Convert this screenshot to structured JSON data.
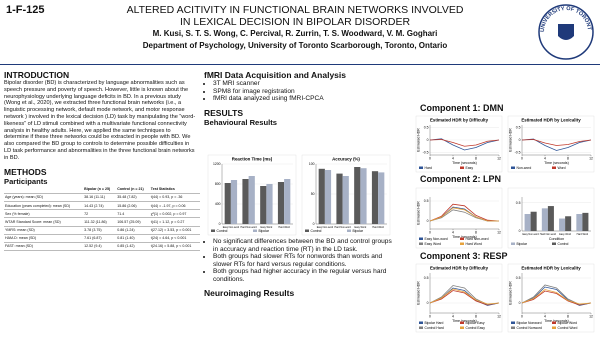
{
  "poster": {
    "id": "1-F-125",
    "title_line1": "ALTERED ACITIVITY IN FUNCTIONAL BRAIN NETWORKS INVOLVED",
    "title_line2": "IN LEXICAL DECISION IN BIPOLAR DISORDER",
    "authors": "M. Kusi, S. T. S. Wong, C. Percival, R. Zurrin, T. S. Woodward, V. M. Goghari",
    "department": "Department of Psychology, University of Toronto Scarborough, Toronto, Ontario",
    "logo_text": "UNIVERSITY OF TORONTO",
    "intro_heading": "INTRODUCTION",
    "intro_text": "Bipolar disorder (BD) is characterized by language abnormalities such as speech pressure and poverty of speech. However, little is known about the neurophysiology underlying language deficits in BD. In a previous study (Wong et al., 2020), we extracted three functional brain networks (i.e., a linguistic processing network, default mode network, and motor response network ) involved in the lexical decision (LD) task by manipulating the “word-likeness” of LD stimuli combined with a multivariate functional connectivity analysis in healthy adults. Here, we applied the same techniques to determine if these three networks could be extracted in people with BD. We also compared the BD group to controls to determine possible difficulties in LD task performance and abnormalities in the three functional brain networks in BD.",
    "methods_heading": "METHODS",
    "participants_heading": "Participants",
    "table": {
      "header": [
        "",
        "Bipolar (n = 25)",
        "Control (n = 21)",
        "Test Statistics"
      ],
      "rows": [
        [
          "Age (years): mean (SD)",
          "38.16 (11.11)",
          "35.48 (7.82)",
          "t(44) = 0.93, p = .36"
        ],
        [
          "Education (years completed): mean (SD)",
          "14.43 (2.74)",
          "15.86 (2.06)",
          "t(44) = -1.97, p = 0.06"
        ],
        [
          "Sex (% female)",
          "72",
          "71.4",
          "χ²(1) = 0.002, p = 0.97"
        ],
        [
          "WTAR Standard Score: mean (SD)",
          "111.32 (11.86)",
          "106.57 (25.09)",
          "t(41) = 1.12, p = 0.27"
        ],
        [
          "YMRS: mean (SD)",
          "3.78 (3.75)",
          "0.86 (1.24)",
          "t(27.12) = 3.53, p = 0.001"
        ],
        [
          "HAM-D: mean (SD)",
          "7.61 (6.87)",
          "0.81 (1.40)",
          "t(24) = 4.64, p < 0.001"
        ],
        [
          "FAST: mean (SD)",
          "12.52 (9.4)",
          "0.85 (1.42)",
          "t(24.16) = 5.88, p < 0.001"
        ]
      ]
    },
    "fmri_heading": "fMRI Data Acquisition and Analysis",
    "fmri_bullets": [
      "3T MRI scanner",
      "SPM8 for image registration",
      "fMRI data analyzed using fMRI-CPCA"
    ],
    "results_heading": "RESULTS",
    "behavioural_heading": "Behavioural Results",
    "results_bullets": [
      "No significant differences between the BD and control groups in accuracy and reaction time (RT) in the LD task.",
      "Both groups had slower RTs for nonwords than words and slower RTs for hard versus regular conditions.",
      "Both groups had higher accuracy in the regular versus hard conditions."
    ],
    "neuro_heading": "Neuroimaging Results",
    "component1": "Component 1: DMN",
    "component2": "Component 2: LPN",
    "component3": "Component 3: RESP"
  },
  "chart_data": [
    {
      "type": "bar",
      "title": "Reaction Time (ms)",
      "categories": [
        "Easy Non-word",
        "Hard Non-word",
        "Easy Word",
        "Hard Word"
      ],
      "series": [
        {
          "name": "Control",
          "color": "#5a5a5a",
          "values": [
            820,
            900,
            760,
            840
          ]
        },
        {
          "name": "Bipolar",
          "color": "#a7b1c6",
          "values": [
            880,
            960,
            800,
            900
          ]
        }
      ],
      "ylim": [
        0,
        1200
      ],
      "yticks": [
        0,
        400,
        800,
        1200
      ]
    },
    {
      "type": "bar",
      "title": "Accuracy (%)",
      "categories": [
        "Easy Non-word",
        "Hard Non-word",
        "Easy Word",
        "Hard Word"
      ],
      "series": [
        {
          "name": "Control",
          "color": "#5a5a5a",
          "values": [
            92,
            84,
            95,
            88
          ]
        },
        {
          "name": "Bipolar",
          "color": "#a7b1c6",
          "values": [
            90,
            80,
            93,
            86
          ]
        }
      ],
      "ylim": [
        0,
        100
      ],
      "yticks": [
        0,
        50,
        100
      ]
    },
    {
      "type": "line",
      "title": "Estimated HDR by Difficulty",
      "x": [
        0,
        2,
        4,
        6,
        8,
        10,
        12
      ],
      "xlabel": "Time (seconds)",
      "ylabel": "Estimated HDR",
      "series": [
        {
          "name": "Hard",
          "color": "#2f5597",
          "values": [
            0,
            0.05,
            -0.2,
            -0.4,
            -0.3,
            -0.1,
            0
          ]
        },
        {
          "name": "Easy",
          "color": "#c0392b",
          "values": [
            0,
            0.02,
            -0.1,
            -0.25,
            -0.2,
            -0.05,
            0
          ]
        }
      ],
      "xlim": [
        0,
        12
      ],
      "xticks": [
        0,
        4,
        8,
        12
      ],
      "ylim": [
        -0.6,
        0.6
      ],
      "yticks": [
        -0.5,
        0,
        0.5
      ]
    },
    {
      "type": "line",
      "title": "Estimated HDR by Lexicality",
      "x": [
        0,
        2,
        4,
        6,
        8,
        10,
        12
      ],
      "xlabel": "Time (seconds)",
      "ylabel": "Estimated HDR",
      "series": [
        {
          "name": "Non-word",
          "color": "#2f5597",
          "values": [
            0,
            0.04,
            -0.22,
            -0.42,
            -0.3,
            -0.1,
            0
          ]
        },
        {
          "name": "Word",
          "color": "#c0392b",
          "values": [
            0,
            0.02,
            -0.12,
            -0.22,
            -0.18,
            -0.06,
            0
          ]
        }
      ],
      "xlim": [
        0,
        12
      ],
      "xticks": [
        0,
        4,
        8,
        12
      ],
      "ylim": [
        -0.6,
        0.6
      ],
      "yticks": [
        -0.5,
        0,
        0.5
      ]
    },
    {
      "type": "line",
      "title": "",
      "x": [
        0,
        2,
        4,
        6,
        8,
        10,
        12
      ],
      "xlabel": "Time (seconds)",
      "ylabel": "Estimated HDR",
      "series": [
        {
          "name": "Easy Non-word",
          "color": "#2f5597",
          "values": [
            0,
            0.1,
            0.35,
            0.3,
            0.1,
            0,
            0
          ]
        },
        {
          "name": "Hard Non-word",
          "color": "#c0392b",
          "values": [
            0,
            0.12,
            0.42,
            0.38,
            0.14,
            0.02,
            0
          ]
        },
        {
          "name": "Easy Word",
          "color": "#7f7f7f",
          "values": [
            0,
            0.08,
            0.28,
            0.22,
            0.08,
            0,
            0
          ]
        },
        {
          "name": "Hard Word",
          "color": "#e6a23c",
          "values": [
            0,
            0.1,
            0.33,
            0.28,
            0.1,
            0,
            0
          ]
        }
      ],
      "xlim": [
        0,
        12
      ],
      "xticks": [
        0,
        4,
        8,
        12
      ],
      "ylim": [
        -0.2,
        0.6
      ],
      "yticks": [
        0,
        0.5
      ]
    },
    {
      "type": "bar",
      "title": "",
      "xlabel": "Condition",
      "categories": [
        "Easy Non-word",
        "Hard Non-word",
        "Easy Word",
        "Hard Word"
      ],
      "series": [
        {
          "name": "Bipolar",
          "color": "#a7b1c6",
          "values": [
            0.3,
            0.4,
            0.22,
            0.3
          ]
        },
        {
          "name": "Control",
          "color": "#5a5a5a",
          "values": [
            0.34,
            0.44,
            0.26,
            0.32
          ]
        }
      ],
      "ylim": [
        0,
        0.6
      ],
      "yticks": [
        0,
        0.5
      ]
    },
    {
      "type": "line",
      "title": "Estimated HDR by Difficulty",
      "x": [
        0,
        2,
        4,
        6,
        8,
        10,
        12
      ],
      "xlabel": "Time (seconds)",
      "ylabel": "Estimated HDR",
      "series": [
        {
          "name": "Bipolar Hard",
          "color": "#2f5597",
          "values": [
            0,
            0.1,
            0.3,
            0.25,
            0.05,
            -0.05,
            0
          ]
        },
        {
          "name": "Bipolar Easy",
          "color": "#c0392b",
          "values": [
            0,
            0.08,
            0.25,
            0.2,
            0.04,
            -0.04,
            0
          ]
        },
        {
          "name": "Control Hard",
          "color": "#7f7f7f",
          "values": [
            0,
            0.12,
            0.35,
            0.3,
            0.08,
            -0.03,
            0
          ]
        },
        {
          "name": "Control Easy",
          "color": "#e6a23c",
          "values": [
            0,
            0.1,
            0.28,
            0.22,
            0.06,
            -0.02,
            0
          ]
        }
      ],
      "xlim": [
        0,
        12
      ],
      "xticks": [
        0,
        4,
        8,
        12
      ],
      "ylim": [
        -0.2,
        0.6
      ],
      "yticks": [
        0,
        0.5
      ]
    },
    {
      "type": "line",
      "title": "Estimated HDR by Lexicality",
      "x": [
        0,
        2,
        4,
        6,
        8,
        10,
        12
      ],
      "xlabel": "Time (seconds)",
      "ylabel": "Estimated HDR",
      "series": [
        {
          "name": "Bipolar Nonword",
          "color": "#2f5597",
          "values": [
            0,
            0.1,
            0.32,
            0.27,
            0.06,
            -0.05,
            0
          ]
        },
        {
          "name": "Bipolar Word",
          "color": "#c0392b",
          "values": [
            0,
            0.07,
            0.24,
            0.19,
            0.04,
            -0.04,
            0
          ]
        },
        {
          "name": "Control Nonword",
          "color": "#7f7f7f",
          "values": [
            0,
            0.12,
            0.36,
            0.3,
            0.08,
            -0.03,
            0
          ]
        },
        {
          "name": "Control Word",
          "color": "#e6a23c",
          "values": [
            0,
            0.09,
            0.27,
            0.21,
            0.05,
            -0.02,
            0
          ]
        }
      ],
      "xlim": [
        0,
        12
      ],
      "xticks": [
        0,
        4,
        8,
        12
      ],
      "ylim": [
        -0.2,
        0.6
      ],
      "yticks": [
        0,
        0.5
      ]
    }
  ]
}
